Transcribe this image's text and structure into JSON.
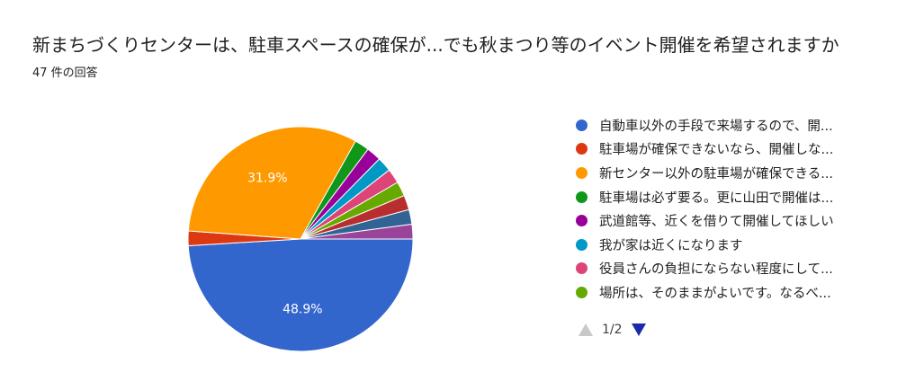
{
  "chart_data": {
    "type": "pie",
    "title": "新まちづくりセンターは、駐車スペースの確保が...でも秋まつり等のイベント開催を希望されますか",
    "subtitle": "47 件の回答",
    "slices": [
      {
        "label": "自動車以外の手段で来場するので、開...",
        "value": 48.9,
        "color": "#3366cc",
        "data_label": "48.9%"
      },
      {
        "label": "駐車場が確保できないなら、開催しな...",
        "value": 2.1,
        "color": "#dc3912",
        "data_label": ""
      },
      {
        "label": "新センター以外の駐車場が確保できる...",
        "value": 31.9,
        "color": "#ff9900",
        "data_label": "31.9%"
      },
      {
        "label": "駐車場は必ず要る。更に山田で開催は...",
        "value": 2.1,
        "color": "#109618",
        "data_label": ""
      },
      {
        "label": "武道館等、近くを借りて開催してほしい",
        "value": 2.1,
        "color": "#990099",
        "data_label": ""
      },
      {
        "label": "我が家は近くになります",
        "value": 2.1,
        "color": "#0099c6",
        "data_label": ""
      },
      {
        "label": "役員さんの負担にならない程度にして...",
        "value": 2.1,
        "color": "#dd4477",
        "data_label": ""
      },
      {
        "label": "場所は、そのままがよいです。なるべ...",
        "value": 2.1,
        "color": "#66aa00",
        "data_label": ""
      },
      {
        "label": "",
        "value": 2.1,
        "color": "#b82e2e",
        "data_label": ""
      },
      {
        "label": "",
        "value": 2.1,
        "color": "#316395",
        "data_label": ""
      },
      {
        "label": "",
        "value": 2.1,
        "color": "#994499",
        "data_label": ""
      }
    ],
    "legend_position": "right"
  },
  "legend": {
    "items": [
      {
        "label": "自動車以外の手段で来場するので、開...",
        "color": "#3366cc"
      },
      {
        "label": "駐車場が確保できないなら、開催しな...",
        "color": "#dc3912"
      },
      {
        "label": "新センター以外の駐車場が確保できる...",
        "color": "#ff9900"
      },
      {
        "label": "駐車場は必ず要る。更に山田で開催は...",
        "color": "#109618"
      },
      {
        "label": "武道館等、近くを借りて開催してほしい",
        "color": "#990099"
      },
      {
        "label": "我が家は近くになります",
        "color": "#0099c6"
      },
      {
        "label": "役員さんの負担にならない程度にして...",
        "color": "#dd4477"
      },
      {
        "label": "場所は、そのままがよいです。なるべ...",
        "color": "#66aa00"
      }
    ]
  },
  "pager": {
    "text": "1/2",
    "prev_icon": "triangle-up-icon",
    "next_icon": "triangle-down-icon"
  }
}
